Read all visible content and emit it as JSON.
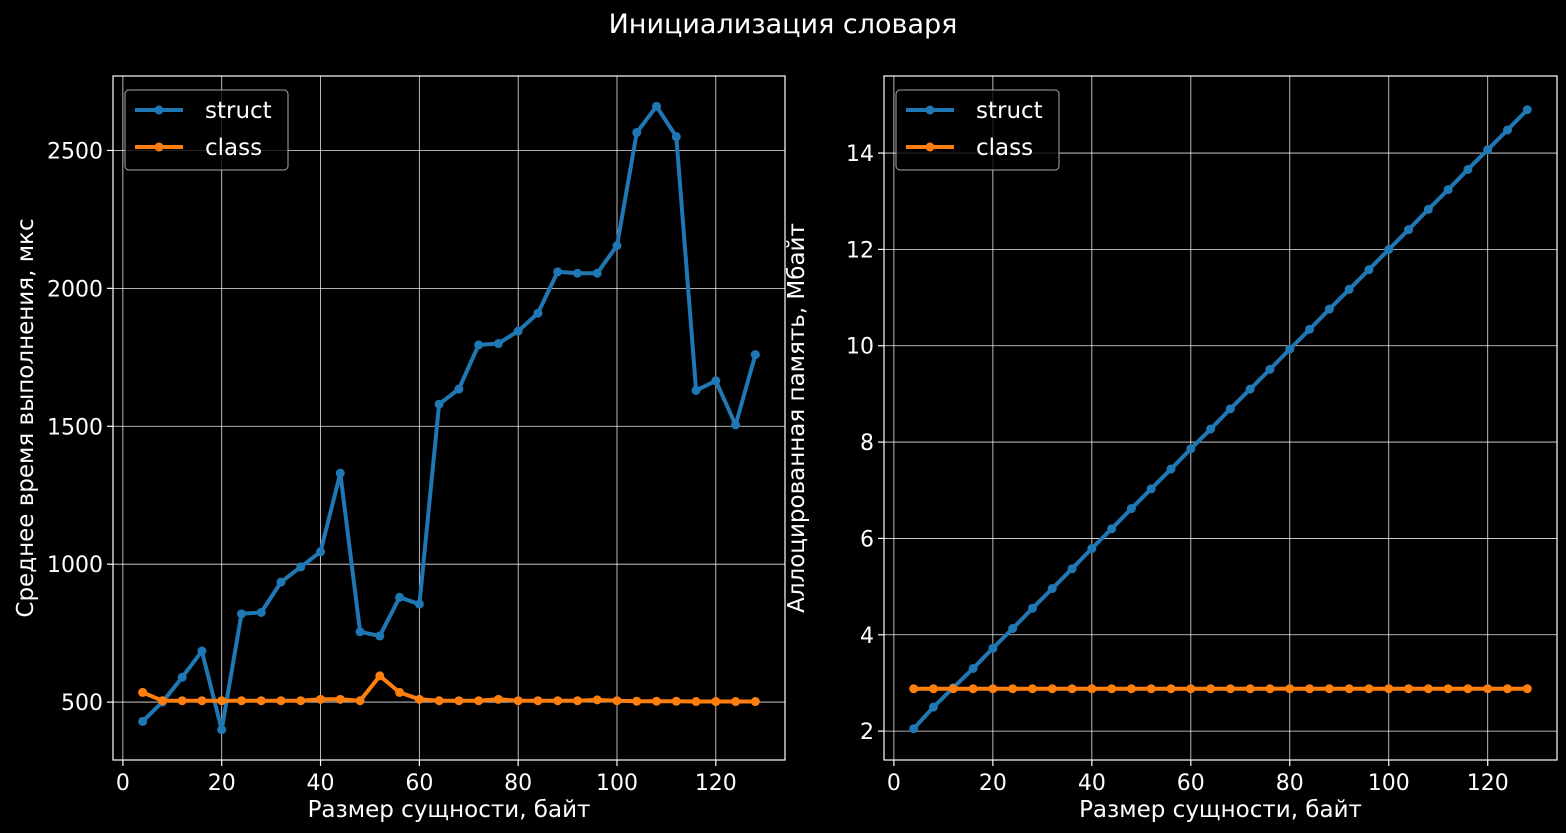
{
  "title": "Инициализация словаря",
  "colors": {
    "struct": "#1f77b4",
    "class": "#ff7f0e",
    "background": "#000000",
    "foreground": "#ffffff"
  },
  "chart_data": [
    {
      "type": "line",
      "xlabel": "Размер сущности, байт",
      "ylabel": "Среднее время выполнения, мкс",
      "xlim": [
        -2,
        134
      ],
      "ylim": [
        290,
        2770
      ],
      "xticks": [
        0,
        20,
        40,
        60,
        80,
        100,
        120
      ],
      "yticks": [
        500,
        1000,
        1500,
        2000,
        2500
      ],
      "grid": true,
      "legend": "top-left",
      "x": [
        4,
        8,
        12,
        16,
        20,
        24,
        28,
        32,
        36,
        40,
        44,
        48,
        52,
        56,
        60,
        64,
        68,
        72,
        76,
        80,
        84,
        88,
        92,
        96,
        100,
        104,
        108,
        112,
        116,
        120,
        124,
        128
      ],
      "series": [
        {
          "name": "struct",
          "values": [
            430,
            500,
            590,
            685,
            400,
            820,
            825,
            935,
            990,
            1045,
            1330,
            755,
            740,
            880,
            855,
            1580,
            1635,
            1795,
            1800,
            1845,
            1910,
            2060,
            2055,
            2055,
            2155,
            2565,
            2660,
            2550,
            1630,
            1665,
            1505,
            1760
          ]
        },
        {
          "name": "class",
          "values": [
            535,
            505,
            505,
            505,
            505,
            505,
            505,
            505,
            505,
            510,
            510,
            505,
            595,
            535,
            510,
            505,
            505,
            505,
            510,
            505,
            505,
            505,
            505,
            508,
            505,
            503,
            503,
            503,
            502,
            502,
            502,
            502
          ]
        }
      ]
    },
    {
      "type": "line",
      "xlabel": "Размер сущности, байт",
      "ylabel": "Аллоцированная память, Мбайт",
      "xlim": [
        -2,
        134
      ],
      "ylim": [
        1.4,
        15.6
      ],
      "xticks": [
        0,
        20,
        40,
        60,
        80,
        100,
        120
      ],
      "yticks": [
        2,
        4,
        6,
        8,
        10,
        12,
        14
      ],
      "grid": true,
      "legend": "top-left",
      "x": [
        4,
        8,
        12,
        16,
        20,
        24,
        28,
        32,
        36,
        40,
        44,
        48,
        52,
        56,
        60,
        64,
        68,
        72,
        76,
        80,
        84,
        88,
        92,
        96,
        100,
        104,
        108,
        112,
        116,
        120,
        124,
        128
      ],
      "series": [
        {
          "name": "struct",
          "values": [
            2.05,
            2.5,
            2.9,
            3.3,
            3.72,
            4.13,
            4.55,
            4.96,
            5.37,
            5.79,
            6.2,
            6.62,
            7.03,
            7.44,
            7.86,
            8.27,
            8.69,
            9.1,
            9.51,
            9.93,
            10.34,
            10.76,
            11.17,
            11.58,
            12.0,
            12.41,
            12.83,
            13.24,
            13.66,
            14.07,
            14.48,
            14.9
          ]
        },
        {
          "name": "class",
          "values": [
            2.88,
            2.88,
            2.88,
            2.88,
            2.88,
            2.88,
            2.88,
            2.88,
            2.88,
            2.88,
            2.88,
            2.88,
            2.88,
            2.88,
            2.88,
            2.88,
            2.88,
            2.88,
            2.88,
            2.88,
            2.88,
            2.88,
            2.88,
            2.88,
            2.88,
            2.88,
            2.88,
            2.88,
            2.88,
            2.88,
            2.88,
            2.88
          ]
        }
      ]
    }
  ]
}
